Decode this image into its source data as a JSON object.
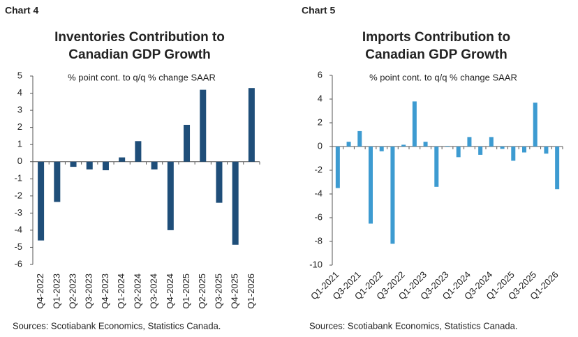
{
  "chart_data": [
    {
      "type": "bar",
      "label": "Chart 4",
      "title": [
        "Inventories Contribution to",
        "Canadian GDP Growth"
      ],
      "subtitle": "% point cont. to q/q % change SAAR",
      "source": "Sources: Scotiabank Economics, Statistics Canada.",
      "categories": [
        "Q4-2022",
        "Q1-2023",
        "Q2-2023",
        "Q3-2023",
        "Q4-2023",
        "Q1-2024",
        "Q2-2024",
        "Q3-2024",
        "Q4-2024",
        "Q1-2025",
        "Q2-2025",
        "Q3-2025",
        "Q4-2025",
        "Q1-2026"
      ],
      "values": [
        -4.6,
        -2.35,
        -0.3,
        -0.45,
        -0.5,
        0.25,
        1.2,
        -0.45,
        -4.0,
        2.15,
        4.2,
        -2.4,
        -4.85,
        4.3
      ],
      "color": "#1f4e79",
      "ylim": [
        -6,
        5
      ],
      "yticks": [
        -6,
        -5,
        -4,
        -3,
        -2,
        -1,
        0,
        1,
        2,
        3,
        4,
        5
      ]
    },
    {
      "type": "bar",
      "label": "Chart 5",
      "title": [
        "Imports Contribution to",
        "Canadian GDP Growth"
      ],
      "subtitle": "% point cont. to q/q % change SAAR",
      "source": "Sources: Scotiabank Economics, Statistics Canada.",
      "categories": [
        "Q1-2021",
        null,
        "Q3-2021",
        null,
        "Q1-2022",
        null,
        "Q3-2022",
        null,
        "Q1-2023",
        null,
        "Q3-2023",
        null,
        "Q1-2024",
        null,
        "Q3-2024",
        null,
        "Q1-2025",
        null,
        "Q3-2025",
        null,
        "Q1-2026"
      ],
      "values": [
        -3.5,
        0.4,
        1.3,
        -6.5,
        -0.4,
        -8.2,
        0.15,
        3.8,
        0.4,
        -3.4,
        0.05,
        -0.9,
        0.8,
        -0.7,
        0.8,
        -0.2,
        -1.2,
        -0.5,
        3.7,
        -0.6,
        -3.6
      ],
      "color": "#3d9bd1",
      "ylim": [
        -10,
        6
      ],
      "yticks": [
        -10,
        -8,
        -6,
        -4,
        -2,
        0,
        2,
        4,
        6
      ]
    }
  ]
}
